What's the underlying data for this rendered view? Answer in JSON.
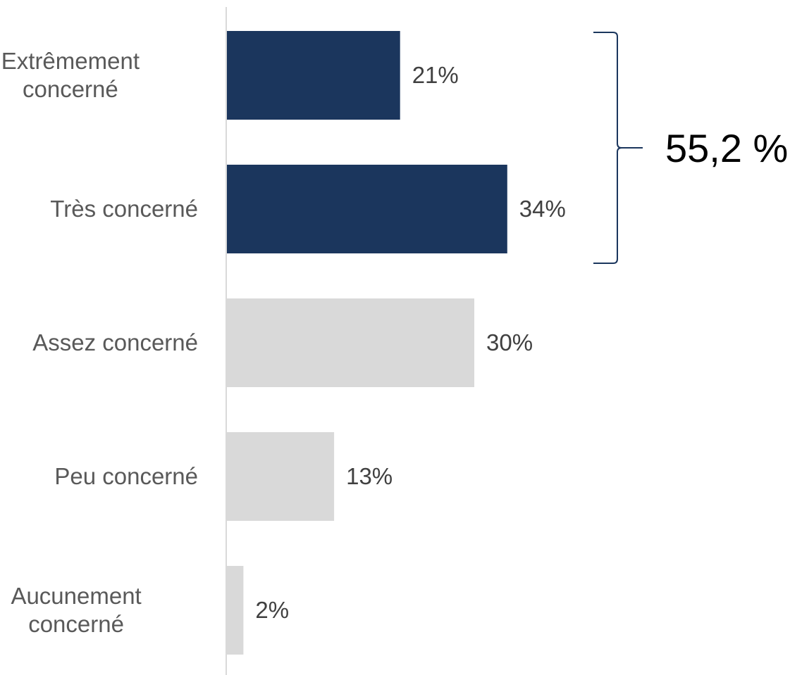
{
  "chart_data": {
    "type": "bar",
    "orientation": "horizontal",
    "categories": [
      [
        "Extrêmement",
        "concerné"
      ],
      [
        "Très concerné"
      ],
      [
        "Assez concerné"
      ],
      [
        "Peu concerné"
      ],
      [
        "Aucunement",
        "concerné"
      ]
    ],
    "values": [
      21,
      34,
      30,
      13,
      2
    ],
    "value_labels": [
      "21%",
      "34%",
      "30%",
      "13%",
      "2%"
    ],
    "unit": "%",
    "xlim": [
      0,
      100
    ],
    "bar_colors": [
      "#1b365d",
      "#1b365d",
      "#d9d9d9",
      "#d9d9d9",
      "#d9d9d9"
    ],
    "grid": false,
    "legend": "none",
    "annotation": {
      "type": "bracket",
      "spans_categories": [
        0,
        1
      ],
      "text": "55,2 %",
      "color": "#1b365d"
    }
  }
}
